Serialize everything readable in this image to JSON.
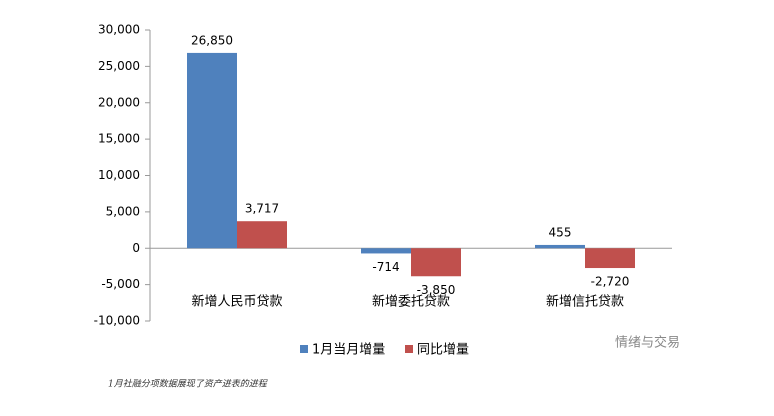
{
  "chart_data": {
    "type": "bar",
    "categories": [
      "新增人民币贷款",
      "新增委托贷款",
      "新增信托贷款"
    ],
    "series": [
      {
        "name": "1月当月增量",
        "color": "#4f81bd",
        "values": [
          26850,
          -714,
          455
        ],
        "value_labels": [
          "26,850",
          "-714",
          "455"
        ]
      },
      {
        "name": "同比增量",
        "color": "#c0504d",
        "values": [
          3717,
          -3850,
          -2720
        ],
        "value_labels": [
          "3,717",
          "-3,850",
          "-2,720"
        ]
      }
    ],
    "ylim": [
      -10000,
      30000
    ],
    "yticks": [
      {
        "value": -10000,
        "label": "-10,000"
      },
      {
        "value": -5000,
        "label": "-5,000"
      },
      0,
      {
        "value": 5000,
        "label": "5,000"
      },
      {
        "value": 10000,
        "label": "10,000"
      },
      {
        "value": 15000,
        "label": "15,000"
      },
      {
        "value": 20000,
        "label": "20,000"
      },
      {
        "value": 25000,
        "label": "25,000"
      },
      {
        "value": 30000,
        "label": "30,000"
      }
    ],
    "legend": "bottom",
    "watermark": "情绪与交易",
    "caption": "1月社融分项数据展现了资产进表的进程"
  }
}
